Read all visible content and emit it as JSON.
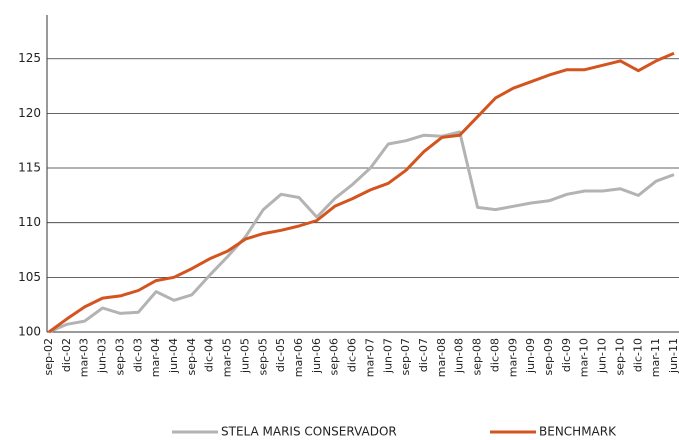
{
  "chart_data": {
    "type": "line",
    "categories": [
      "sep-02",
      "dic-02",
      "mar-03",
      "jun-03",
      "sep-03",
      "dic-03",
      "mar-04",
      "jun-04",
      "sep-04",
      "dic-04",
      "mar-05",
      "jun-05",
      "sep-05",
      "dic-05",
      "mar-06",
      "jun-06",
      "sep-06",
      "dic-06",
      "mar-07",
      "jun-07",
      "sep-07",
      "dic-07",
      "mar-08",
      "jun-08",
      "sep-08",
      "dic-08",
      "mar-09",
      "jun-09",
      "sep-09",
      "dic-09",
      "mar-10",
      "jun-10",
      "sep-10",
      "dic-10",
      "mar-11",
      "jun-11"
    ],
    "series": [
      {
        "name": "STELA MARIS CONSERVADOR",
        "color": "#b3b3b3",
        "values": [
          100,
          100.7,
          101,
          102.2,
          101.7,
          101.8,
          103.7,
          102.9,
          103.4,
          105.2,
          106.9,
          108.7,
          111.2,
          112.6,
          112.3,
          110.5,
          112.2,
          113.5,
          115,
          117.2,
          117.5,
          118,
          117.9,
          118.3,
          111.4,
          111.2,
          111.5,
          111.8,
          112,
          112.6,
          112.9,
          112.9,
          113.1,
          112.5,
          113.8,
          114.4
        ]
      },
      {
        "name": "BENCHMARK",
        "color": "#d4541f",
        "values": [
          100,
          101.2,
          102.3,
          103.1,
          103.3,
          103.8,
          104.7,
          105,
          105.8,
          106.7,
          107.4,
          108.5,
          109,
          109.3,
          109.7,
          110.2,
          111.5,
          112.2,
          113,
          113.6,
          114.8,
          116.5,
          117.8,
          118,
          119.7,
          121.4,
          122.3,
          122.9,
          123.5,
          124,
          124,
          124.4,
          124.8,
          123.9,
          124.8,
          125.5
        ]
      }
    ],
    "ylim": [
      100,
      129
    ],
    "yticks": [
      100,
      105,
      110,
      115,
      120,
      125
    ],
    "grid": true
  }
}
